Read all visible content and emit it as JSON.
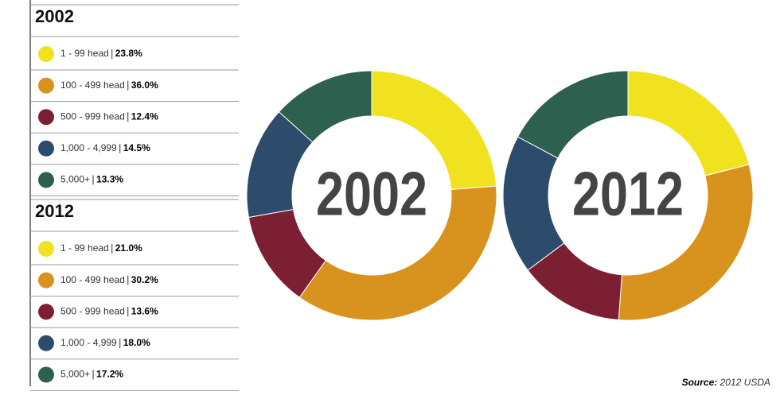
{
  "chart_data": [
    {
      "type": "pie",
      "title": "2002",
      "donut": true,
      "categories": [
        "1 - 99 head",
        "100 - 499 head",
        "500 - 999 head",
        "1,000 - 4,999",
        "5,000+"
      ],
      "values": [
        23.8,
        36.0,
        12.4,
        14.5,
        13.3
      ],
      "value_labels": [
        "23.8%",
        "36.0%",
        "12.4%",
        "14.5%",
        "13.3%"
      ],
      "colors": [
        "#f0e21f",
        "#d8931f",
        "#7c1f33",
        "#2d4c6c",
        "#2e6050"
      ]
    },
    {
      "type": "pie",
      "title": "2012",
      "donut": true,
      "categories": [
        "1 - 99 head",
        "100 - 499 head",
        "500 - 999 head",
        "1,000 - 4,999",
        "5,000+"
      ],
      "values": [
        21.0,
        30.2,
        13.6,
        18.0,
        17.2
      ],
      "value_labels": [
        "21.0%",
        "30.2%",
        "13.6%",
        "18.0%",
        "17.2%"
      ],
      "colors": [
        "#f0e21f",
        "#d8931f",
        "#7c1f33",
        "#2d4c6c",
        "#2e6050"
      ]
    }
  ],
  "source": {
    "label": "Source:",
    "text": "2012 USDA"
  }
}
